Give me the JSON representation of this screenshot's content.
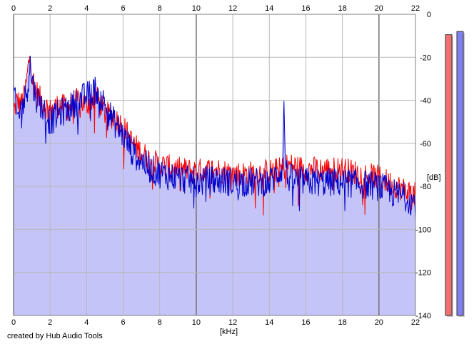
{
  "chart_data": {
    "type": "area",
    "title": "",
    "xlabel": "[kHz]",
    "ylabel": "[dB]",
    "xlim": [
      0,
      22
    ],
    "ylim": [
      -140,
      0
    ],
    "x_ticks": [
      0,
      2,
      4,
      6,
      8,
      10,
      12,
      14,
      16,
      18,
      20,
      22
    ],
    "y_ticks": [
      0,
      -20,
      -40,
      -60,
      -80,
      -100,
      -120,
      -140
    ],
    "grid": true,
    "colors": {
      "fill": "#c4c4f8",
      "series_red": "#ff0000",
      "series_blue": "#0000cc",
      "grid": "#b8b8b8",
      "grid_major": "#707070",
      "meter_red": "#f07070",
      "meter_blue": "#8080f0"
    },
    "series": [
      {
        "color": "red",
        "x": [
          0,
          0.2,
          0.4,
          0.6,
          0.8,
          0.9,
          1.0,
          1.2,
          1.5,
          2.0,
          2.5,
          3.0,
          3.5,
          4.0,
          4.5,
          5.0,
          5.5,
          6.0,
          6.5,
          7.0,
          7.5,
          8.0,
          9.0,
          10.0,
          11.0,
          12.0,
          13.0,
          14.0,
          14.7,
          15.0,
          16.0,
          17.0,
          18.0,
          19.0,
          20.0,
          20.5,
          21.0,
          21.5,
          22.0
        ],
        "values": [
          -45,
          -40,
          -42,
          -38,
          -25,
          -17,
          -28,
          -35,
          -40,
          -45,
          -42,
          -44,
          -40,
          -42,
          -38,
          -46,
          -48,
          -52,
          -60,
          -64,
          -68,
          -70,
          -72,
          -73,
          -72,
          -74,
          -74,
          -73,
          -72,
          -70,
          -72,
          -72,
          -72,
          -74,
          -76,
          -78,
          -80,
          -82,
          -84
        ]
      },
      {
        "color": "blue",
        "x": [
          0,
          0.2,
          0.4,
          0.6,
          0.8,
          0.9,
          1.0,
          1.2,
          1.5,
          2.0,
          2.5,
          3.0,
          3.5,
          4.0,
          4.5,
          5.0,
          5.5,
          6.0,
          6.5,
          7.0,
          7.5,
          8.0,
          9.0,
          10.0,
          11.0,
          12.0,
          13.0,
          14.0,
          14.7,
          14.8,
          14.9,
          15.0,
          16.0,
          17.0,
          18.0,
          19.0,
          20.0,
          20.5,
          21.0,
          21.5,
          22.0
        ],
        "values": [
          -35,
          -48,
          -44,
          -40,
          -32,
          -22,
          -30,
          -38,
          -42,
          -50,
          -46,
          -44,
          -40,
          -38,
          -35,
          -42,
          -50,
          -56,
          -64,
          -68,
          -72,
          -74,
          -76,
          -78,
          -77,
          -78,
          -78,
          -78,
          -72,
          -44,
          -70,
          -76,
          -78,
          -78,
          -78,
          -79,
          -80,
          -82,
          -84,
          -85,
          -88
        ]
      }
    ]
  },
  "footer": {
    "credit": "created by Hub Audio Tools"
  },
  "meters": [
    {
      "name": "red",
      "level_db": -9.5
    },
    {
      "name": "blue",
      "level_db": -8
    }
  ]
}
